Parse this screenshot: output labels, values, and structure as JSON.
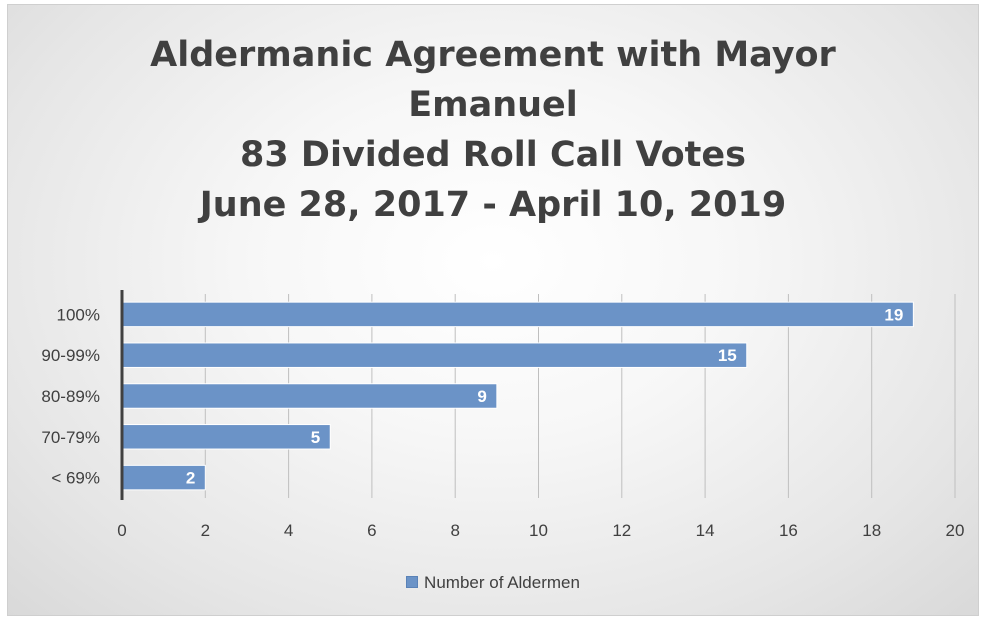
{
  "chart_data": {
    "type": "bar",
    "orientation": "horizontal",
    "title_lines": [
      "Aldermanic Agreement with Mayor",
      "Emanuel",
      "83 Divided Roll Call Votes",
      "June 28, 2017 - April 10, 2019"
    ],
    "categories": [
      "100%",
      "90-99%",
      "80-89%",
      "70-79%",
      "< 69%"
    ],
    "series": [
      {
        "name": "Number of Aldermen",
        "values": [
          19,
          15,
          9,
          5,
          2
        ]
      }
    ],
    "xlim": [
      0,
      20
    ],
    "xticks": [
      0,
      2,
      4,
      6,
      8,
      10,
      12,
      14,
      16,
      18,
      20
    ],
    "xlabel": "",
    "ylabel": "",
    "grid": "vertical",
    "legend": "bottom",
    "data_labels": true,
    "colors": {
      "bar_fill": "#6b93c7",
      "bar_stroke": "#ffffff",
      "text": "#404040",
      "axis": "#404040",
      "grid": "#bfbfbf"
    }
  }
}
